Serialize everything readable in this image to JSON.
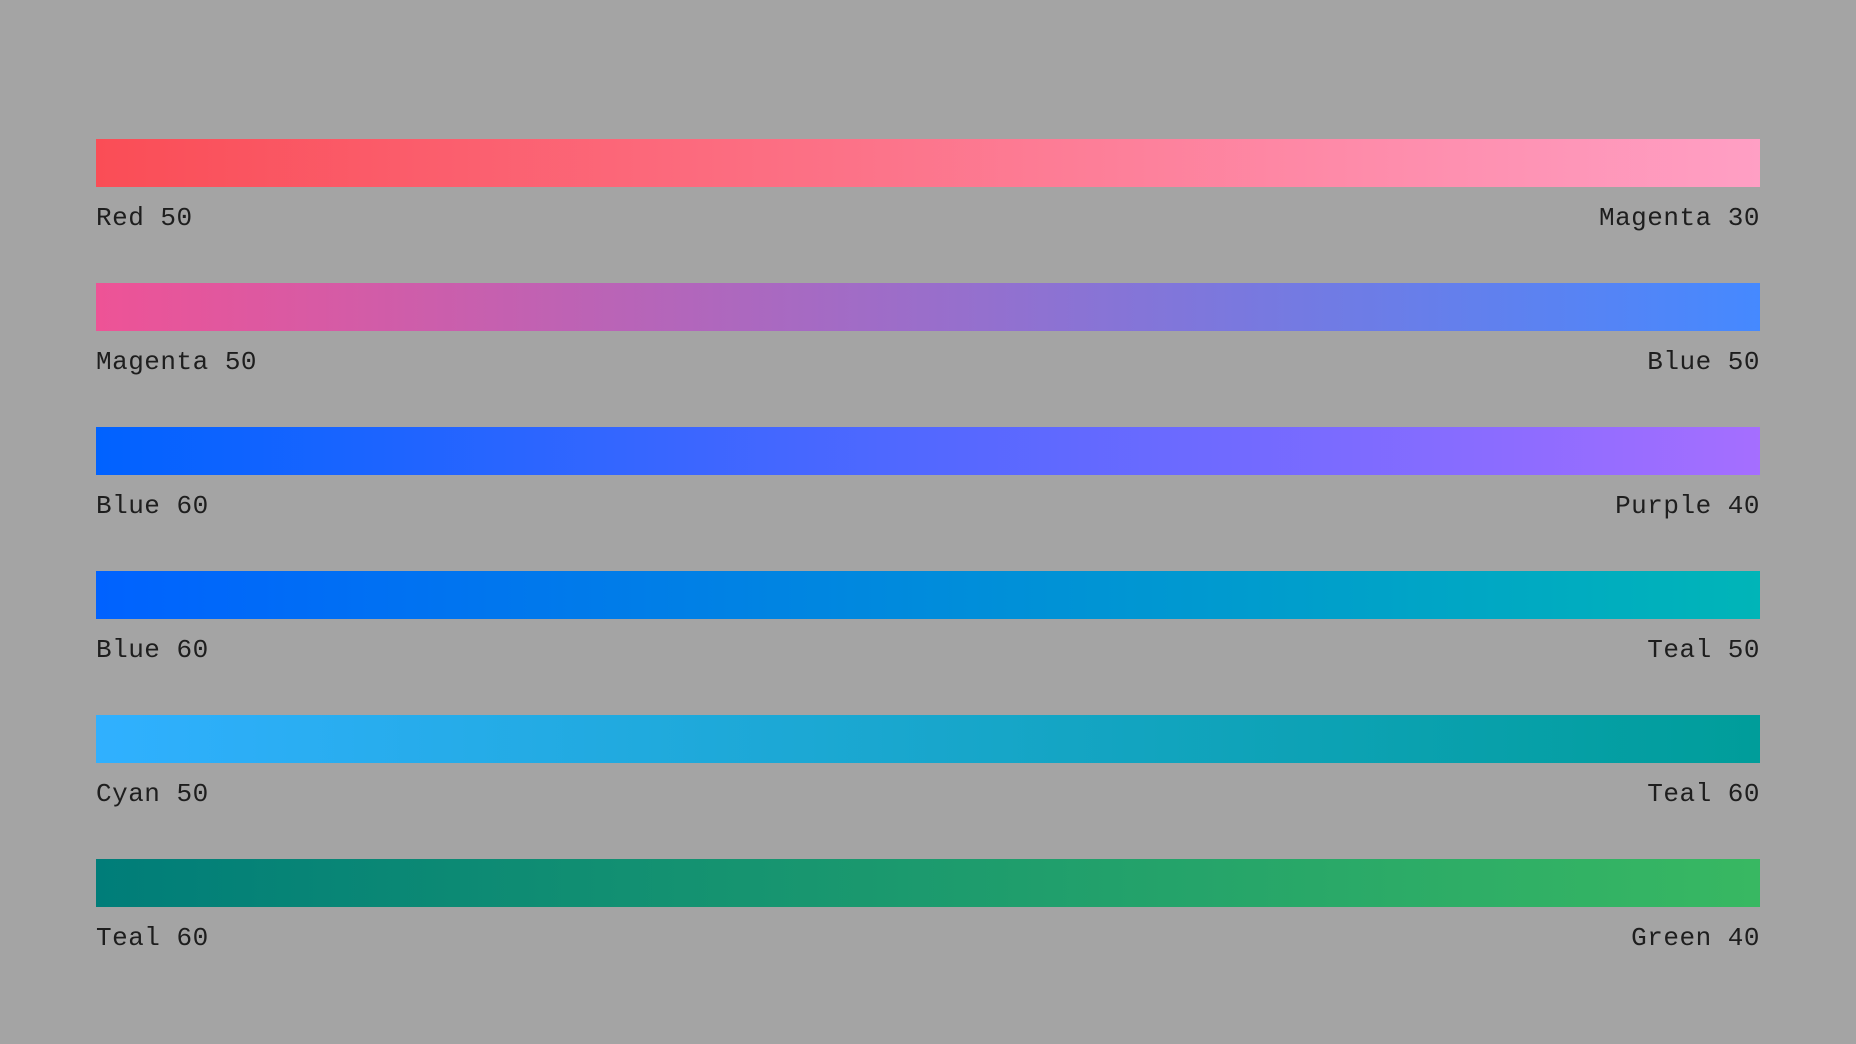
{
  "gradients": [
    {
      "start_label": "Red 50",
      "end_label": "Magenta 30",
      "start_color": "#fa4d56",
      "end_color": "#ff9fc4"
    },
    {
      "start_label": "Magenta 50",
      "end_label": "Blue 50",
      "start_color": "#ee5396",
      "end_color": "#4589ff"
    },
    {
      "start_label": "Blue 60",
      "end_label": "Purple 40",
      "start_color": "#0062ff",
      "end_color": "#a56eff"
    },
    {
      "start_label": "Blue 60",
      "end_label": "Teal 50",
      "start_color": "#0062ff",
      "end_color": "#00b5b8"
    },
    {
      "start_label": "Cyan 50",
      "end_label": "Teal 60",
      "start_color": "#30b0ff",
      "end_color": "#009d9a"
    },
    {
      "start_label": "Teal 60",
      "end_label": "Green 40",
      "start_color": "#007d79",
      "end_color": "#38b862"
    }
  ]
}
